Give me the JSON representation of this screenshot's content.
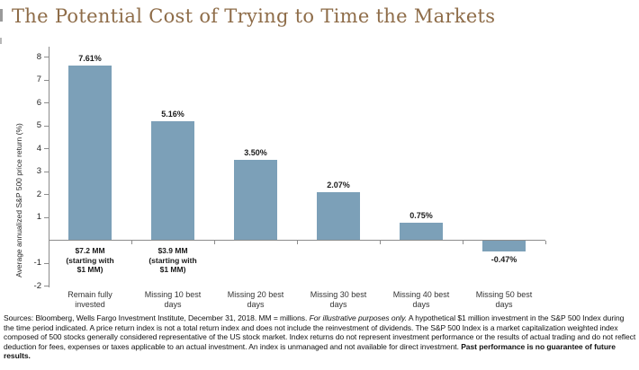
{
  "page": {
    "title": "The Potential Cost of Trying to Time the Markets"
  },
  "chart_data": {
    "type": "bar",
    "title": "The Potential Cost of Trying to Time the Markets",
    "xlabel": "",
    "ylabel": "Average annualized S&P 500 price return (%)",
    "categories": [
      "Remain fully invested",
      "Missing 10 best days",
      "Missing 20 best days",
      "Missing 30 best days",
      "Missing 40 best days",
      "Missing 50 best days"
    ],
    "values": [
      7.61,
      5.16,
      3.5,
      2.07,
      0.75,
      -0.47
    ],
    "data_labels": [
      "7.61%",
      "5.16%",
      "3.50%",
      "2.07%",
      "0.75%",
      "-0.47%"
    ],
    "ylim": [
      -2,
      8
    ],
    "ytick_labels": [
      "8",
      "7",
      "6",
      "5",
      "4",
      "3",
      "2",
      "1",
      "-1",
      "-2"
    ],
    "ytick_values": [
      8,
      7,
      6,
      5,
      4,
      3,
      2,
      1,
      -1,
      -2
    ],
    "grid": false,
    "legend_position": "none",
    "bar_color": "#7CA0B8",
    "annotations": [
      {
        "category_index": 0,
        "lines": [
          "$7.2 MM",
          "(starting with",
          "$1 MM)"
        ]
      },
      {
        "category_index": 1,
        "lines": [
          "$3.9 MM",
          "(starting with",
          "$1 MM)"
        ]
      }
    ]
  },
  "footnote": {
    "seg1": "Sources: Bloomberg, Wells Fargo Investment Institute, December 31, 2018. MM = millions. ",
    "seg2_italic": "For illustrative purposes only.",
    "seg3": "  A hypothetical $1 million investment in the S&P 500 Index during the time period indicated.  A price return index is not a total return index and does not include the reinvestment of dividends.  The S&P 500 Index is a market capitalization weighted index composed of 500 stocks generally considered representative of the US stock market.  Index returns do not represent investment performance or the results of actual trading and do not reflect deduction for fees, expenses or taxes applicable to an actual investment.  An index is unmanaged and not available for direct investment.  ",
    "seg4_bold": "Past performance is no guarantee of future results."
  },
  "colors": {
    "title": "#8E6C48",
    "bar": "#7CA0B8",
    "axis": "#8C8C8C",
    "text": "#262626"
  }
}
